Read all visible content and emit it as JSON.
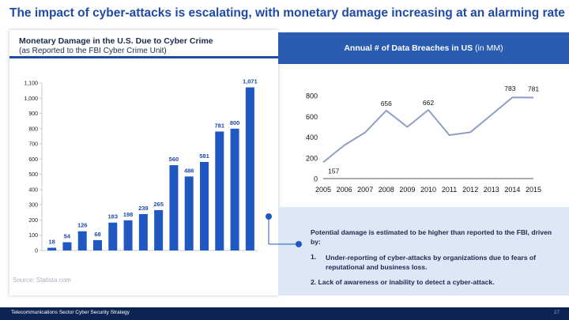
{
  "slide": {
    "title": "The impact of cyber-attacks is escalating, with monetary damage increasing at an alarming rate",
    "footer_text": "Telecommunications Sector Cyber Security Strategy",
    "page_number": "27",
    "source": "Source: Statista.com"
  },
  "left_panel": {
    "title": "Monetary Damage in the U.S. Due to Cyber Crime",
    "subtitle": "(as Reported to the FBI Cyber Crime Unit)"
  },
  "right_panel": {
    "header_bold": "Annual # of Data Breaches in US",
    "header_suffix": " (in MM)"
  },
  "note": {
    "intro": "Potential damage is estimated to be higher than reported to the FBI, driven by:",
    "point1_num": "1.",
    "point1": "Under-reporting of cyber-attacks by organizations due to fears of reputational and business loss.",
    "point2": "2. Lack of awareness or inability to detect a cyber-attack."
  },
  "colors": {
    "bar": "#1f57c3",
    "line": "#8d9fc4",
    "accent": "#1f4aa8",
    "note_bg": "#dde7f5",
    "footer_bg": "#0d2352"
  },
  "chart_data": [
    {
      "type": "bar",
      "title": "",
      "values": [
        18,
        54,
        126,
        68,
        183,
        198,
        239,
        265,
        560,
        486,
        581,
        781,
        800,
        1071
      ],
      "data_labels": [
        "18",
        "54",
        "126",
        "68",
        "183",
        "198",
        "239",
        "265",
        "560",
        "486",
        "581",
        "781",
        "800",
        "1,071"
      ],
      "yticks": [
        0,
        100,
        200,
        300,
        400,
        500,
        600,
        700,
        800,
        900,
        1000,
        1100
      ],
      "ytick_labels": [
        "0",
        "100",
        "200",
        "300",
        "400",
        "500",
        "600",
        "700",
        "800",
        "900",
        "1,000",
        "1,100"
      ],
      "ylim": [
        0,
        1100
      ],
      "grid": false
    },
    {
      "type": "line",
      "x": [
        2005,
        2006,
        2007,
        2008,
        2009,
        2010,
        2011,
        2012,
        2013,
        2014,
        2015
      ],
      "values": [
        157,
        321,
        446,
        656,
        498,
        662,
        419,
        447,
        614,
        783,
        781
      ],
      "point_labels": [
        {
          "index": 0,
          "text": "157"
        },
        {
          "index": 3,
          "text": "656"
        },
        {
          "index": 5,
          "text": "662"
        },
        {
          "index": 9,
          "text": "783"
        },
        {
          "index": 10,
          "text": "781"
        }
      ],
      "yticks": [
        0,
        200,
        400,
        600,
        800
      ],
      "ylim": [
        0,
        800
      ],
      "grid": false
    }
  ]
}
